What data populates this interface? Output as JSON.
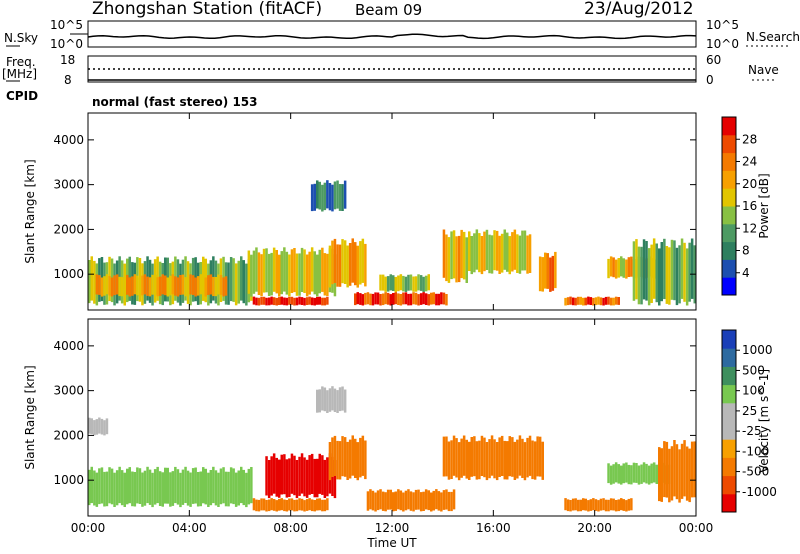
{
  "header": {
    "station": "Zhongshan Station (fitACF)",
    "beam": "Beam 09",
    "date": "23/Aug/2012"
  },
  "top_panels": {
    "nsky_label": "N.Sky",
    "nsky_ticks": [
      "10^5",
      "10^0"
    ],
    "nsearch_label": "N.Search",
    "nsearch_ticks": [
      "10^5",
      "10^0"
    ],
    "freq_label": "Freq.",
    "freq_unit": "[MHz]",
    "freq_ticks": [
      "18",
      "8"
    ],
    "nave_label": "Nave",
    "nave_ticks": [
      "60",
      "0"
    ],
    "cpid_label": "CPID",
    "cpid_text": "normal (fast stereo) 153"
  },
  "colors": {
    "power_scale": [
      "#0000ff",
      "#1c4fb0",
      "#2e7f5f",
      "#4d9a63",
      "#88c043",
      "#e2c500",
      "#f7a000",
      "#f47a00",
      "#ee4a00",
      "#e50000"
    ],
    "velocity_scale": [
      "#e60000",
      "#ee4a00",
      "#f47a00",
      "#f7a000",
      "#b8b8b8",
      "#b8b8b8",
      "#78c850",
      "#3e8f5e",
      "#2d6aa0",
      "#1a3fb8"
    ]
  },
  "chart_data": [
    {
      "type": "heatmap",
      "panel": "power",
      "ylabel": "Slant Range [km]",
      "yticks": [
        "1000",
        "2000",
        "3000",
        "4000"
      ],
      "ylim": [
        200,
        4600
      ],
      "xticks": [
        "00:00",
        "04:00",
        "08:00",
        "12:00",
        "16:00",
        "20:00",
        "00:00"
      ],
      "xlim_hours": [
        0,
        24
      ],
      "colorbar": {
        "label": "Power [dB]",
        "ticks": [
          "28",
          "24",
          "20",
          "16",
          "12",
          "8",
          "4"
        ],
        "range": [
          0,
          30
        ]
      },
      "patches": [
        {
          "t0": 0.0,
          "t1": 6.5,
          "r0": 300,
          "r1": 1400,
          "v": 12
        },
        {
          "t0": 0.3,
          "t1": 5.5,
          "r0": 500,
          "r1": 1000,
          "v": 20
        },
        {
          "t0": 6.5,
          "t1": 9.5,
          "r0": 300,
          "r1": 500,
          "v": 28
        },
        {
          "t0": 6.3,
          "t1": 9.8,
          "r0": 500,
          "r1": 1600,
          "v": 16
        },
        {
          "t0": 8.8,
          "t1": 10.2,
          "r0": 2400,
          "r1": 3100,
          "v": 8
        },
        {
          "t0": 9.5,
          "t1": 11.0,
          "r0": 700,
          "r1": 1800,
          "v": 20
        },
        {
          "t0": 10.5,
          "t1": 14.2,
          "r0": 300,
          "r1": 600,
          "v": 26
        },
        {
          "t0": 11.5,
          "t1": 13.5,
          "r0": 600,
          "r1": 1000,
          "v": 14
        },
        {
          "t0": 14.0,
          "t1": 15.0,
          "r0": 800,
          "r1": 2000,
          "v": 18
        },
        {
          "t0": 15.0,
          "t1": 17.5,
          "r0": 1000,
          "r1": 2000,
          "v": 16
        },
        {
          "t0": 17.8,
          "t1": 18.5,
          "r0": 600,
          "r1": 1500,
          "v": 22
        },
        {
          "t0": 18.8,
          "t1": 21.0,
          "r0": 300,
          "r1": 500,
          "v": 24
        },
        {
          "t0": 20.5,
          "t1": 22.5,
          "r0": 900,
          "r1": 1400,
          "v": 18
        },
        {
          "t0": 21.5,
          "t1": 24.0,
          "r0": 300,
          "r1": 1800,
          "v": 12
        }
      ]
    },
    {
      "type": "heatmap",
      "panel": "velocity",
      "ylabel": "Slant Range [km]",
      "yticks": [
        "1000",
        "2000",
        "3000",
        "4000"
      ],
      "ylim": [
        200,
        4600
      ],
      "xticks": [
        "00:00",
        "04:00",
        "08:00",
        "12:00",
        "16:00",
        "20:00",
        "00:00"
      ],
      "xlim_hours": [
        0,
        24
      ],
      "xlabel": "Time UT",
      "colorbar": {
        "label": "Velocity [m s^-1]",
        "ticks": [
          "1000",
          "500",
          "100",
          "25",
          "-25",
          "-100",
          "-500",
          "-1000"
        ]
      },
      "patches": [
        {
          "t0": 0.0,
          "t1": 6.5,
          "r0": 400,
          "r1": 1300,
          "v": 100
        },
        {
          "t0": 0.0,
          "t1": 0.8,
          "r0": 2000,
          "r1": 2400,
          "v": 0
        },
        {
          "t0": 6.5,
          "t1": 9.5,
          "r0": 300,
          "r1": 600,
          "v": -100
        },
        {
          "t0": 7.0,
          "t1": 9.8,
          "r0": 600,
          "r1": 1600,
          "v": -500
        },
        {
          "t0": 9.0,
          "t1": 10.2,
          "r0": 2500,
          "r1": 3100,
          "v": 0
        },
        {
          "t0": 9.5,
          "t1": 11.0,
          "r0": 1000,
          "r1": 2000,
          "v": -100
        },
        {
          "t0": 11.0,
          "t1": 14.5,
          "r0": 300,
          "r1": 800,
          "v": -100
        },
        {
          "t0": 14.0,
          "t1": 18.0,
          "r0": 1000,
          "r1": 2000,
          "v": -100
        },
        {
          "t0": 18.8,
          "t1": 21.5,
          "r0": 300,
          "r1": 600,
          "v": -100
        },
        {
          "t0": 20.5,
          "t1": 23.0,
          "r0": 900,
          "r1": 1400,
          "v": 100
        },
        {
          "t0": 22.5,
          "t1": 24.0,
          "r0": 500,
          "r1": 1900,
          "v": -100
        }
      ]
    }
  ]
}
